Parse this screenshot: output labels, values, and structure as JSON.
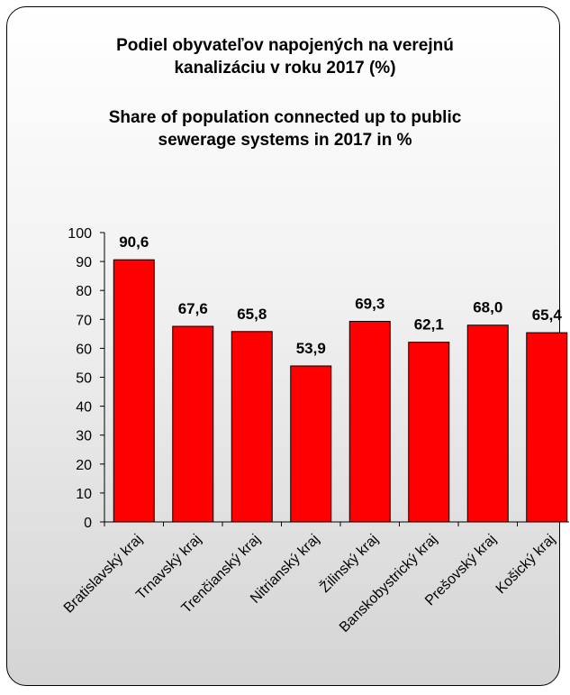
{
  "titles": {
    "sk_line1": "Podiel obyvateľov napojených na verejnú",
    "sk_line2": "kanalizáciu v roku 2017 (%)",
    "en_line1": "Share of population connected up to public",
    "en_line2": "sewerage systems in 2017 in %"
  },
  "colors": {
    "bar": "#ff0000",
    "bar_stroke": "#000000"
  },
  "chart_data": {
    "type": "bar",
    "title": "Podiel obyvateľov napojených na verejnú kanalizáciu v roku 2017 (%) / Share of population connected up to public sewerage systems in 2017 in %",
    "categories": [
      "Bratislavský kraj",
      "Trnavský kraj",
      "Trenčianský kraj",
      "Nitrianský kraj",
      "Žilinský kraj",
      "Banskobystrický kraj",
      "Prešovský kraj",
      "Košický kraj"
    ],
    "values": [
      90.6,
      67.6,
      65.8,
      53.9,
      69.3,
      62.1,
      68.0,
      65.4
    ],
    "value_labels": [
      "90,6",
      "67,6",
      "65,8",
      "53,9",
      "69,3",
      "62,1",
      "68,0",
      "65,4"
    ],
    "ylim": [
      0,
      100
    ],
    "yticks": [
      0,
      10,
      20,
      30,
      40,
      50,
      60,
      70,
      80,
      90,
      100
    ],
    "grid": false,
    "legend": "none",
    "xlabel": "",
    "ylabel": ""
  }
}
